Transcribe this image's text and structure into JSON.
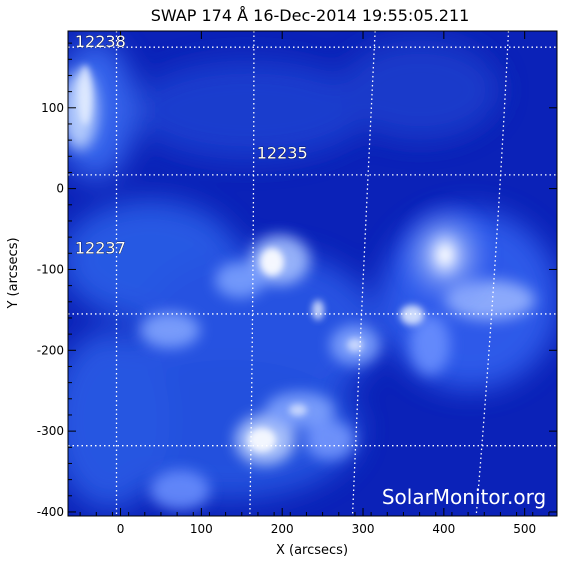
{
  "chart_data": {
    "type": "heatmap",
    "title": "SWAP 174 Å 16-Dec-2014 19:55:05.211",
    "xlabel": "X (arcsecs)",
    "ylabel": "Y (arcsecs)",
    "xlim": [
      -65,
      540
    ],
    "ylim": [
      -405,
      195
    ],
    "x_ticks": [
      0,
      100,
      200,
      300,
      400,
      500
    ],
    "y_ticks": [
      -400,
      -300,
      -200,
      -100,
      0,
      100
    ],
    "grid": "on (dotted white heliographic grid)",
    "colormap": "blue (SWAP 174 Å)",
    "active_regions": [
      {
        "label": "12238",
        "x": -25,
        "y": 175
      },
      {
        "label": "12235",
        "x": 200,
        "y": 37
      },
      {
        "label": "12237",
        "x": -25,
        "y": -80
      }
    ],
    "watermark": "SolarMonitor.org"
  },
  "colors": {
    "background": "#0a1fb3",
    "bright": "#e8f0ff",
    "axis": "#000000",
    "grid": "#ffffff"
  }
}
